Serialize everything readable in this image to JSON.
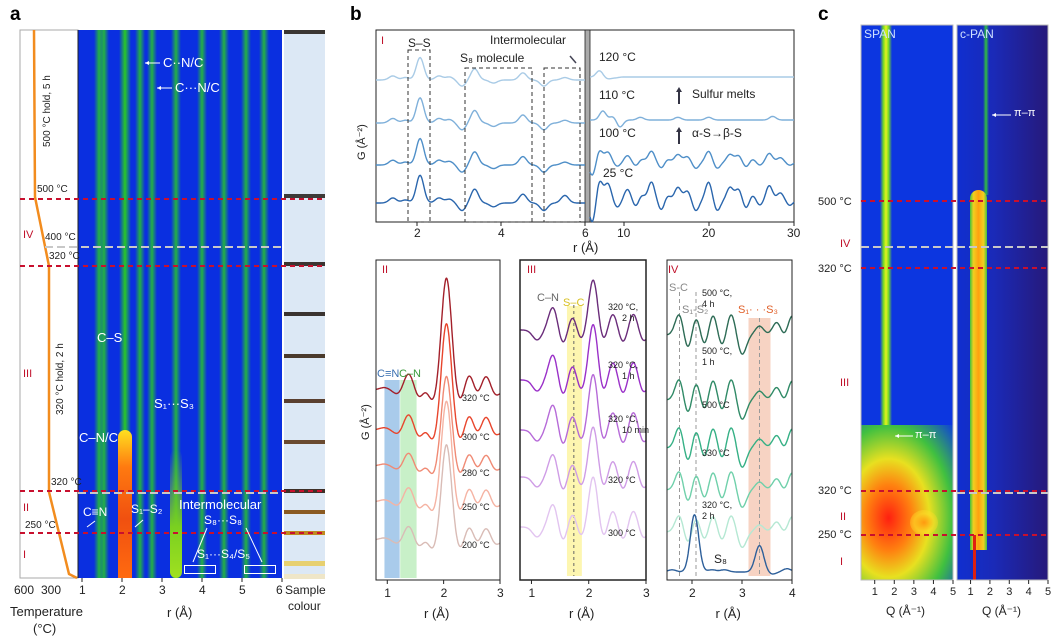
{
  "panel_labels": {
    "a": "a",
    "b": "b",
    "c": "c"
  },
  "panel_a": {
    "annotations": {
      "cn_1": "C··N/C",
      "cn_2": "C···N/C",
      "cs": "C–S",
      "cnc": "C–N/C",
      "s1s3": "S₁···S₃",
      "ctn": "C≡N",
      "s1s2": "S₁–S₂",
      "intermolecular": "Intermolecular",
      "s8s8": "S₈···S₈",
      "s1s4": "S₁···S₄/S₅"
    },
    "temperature_labels": {
      "t500": "500 °C",
      "t400": "400 °C",
      "t320a": "320 °C",
      "t320b": "320 °C",
      "t250": "250 °C"
    },
    "hold_labels": {
      "hold500": "500 °C hold, 5 h",
      "hold320": "320 °C hold, 2 h"
    },
    "stages": {
      "IV": "IV",
      "III": "III",
      "II": "II",
      "I": "I"
    },
    "temp_ticks": [
      "600",
      "300"
    ],
    "temp_axis_label_1": "Temperature",
    "temp_axis_label_2": "(°C)",
    "r_ticks": [
      "1",
      "2",
      "3",
      "4",
      "5",
      "6"
    ],
    "r_axis_label": "r (Å)",
    "sample_label_1": "Sample",
    "sample_label_2": "colour",
    "sample_colours": [
      "#3a3633",
      "#3d3a38",
      "#3b3532",
      "#3a3330",
      "#4a3a2c",
      "#5a4030",
      "#6a4a30",
      "#3e3028",
      "#8a5a22",
      "#c08a20",
      "#e7d070",
      "#efe6c8"
    ],
    "colors": {
      "temperature_curve": "#f28c1e",
      "stage_boundary": "#c8102e",
      "midline": "#c8c8c8",
      "sample_bg": "#dce8f5"
    }
  },
  "panel_b": {
    "top": {
      "stage": "I",
      "boxes": {
        "ss": "S–S",
        "s8": "S₈ molecule",
        "inter": "Intermolecular"
      },
      "temps": {
        "t120": "120 °C",
        "t110": "110 °C",
        "t100": "100 °C",
        "t25": "25 °C"
      },
      "notes": {
        "melts": "Sulfur melts",
        "transition": "α-S→β-S"
      },
      "ylabel": "G (Å⁻²)",
      "xlabel": "r (Å)",
      "x_ticks_left": [
        "2",
        "4",
        "6"
      ],
      "x_ticks_right": [
        "10",
        "20",
        "30"
      ]
    },
    "II": {
      "stage": "II",
      "band_ctn": "C≡N",
      "band_cn": "C–N",
      "ylabel": "G (Å⁻²)",
      "xlabel": "r (Å)",
      "x_ticks": [
        "1",
        "2",
        "3"
      ],
      "temps": [
        "320 °C",
        "300 °C",
        "280 °C",
        "250 °C",
        "200 °C"
      ]
    },
    "III": {
      "stage": "III",
      "cn": "C–N",
      "sc": "S–C",
      "xlabel": "r (Å)",
      "x_ticks": [
        "1",
        "2",
        "3"
      ],
      "temps": [
        [
          "320 °C,",
          "2 h"
        ],
        [
          "320 °C,",
          "1 h"
        ],
        [
          "320 °C,",
          "10 min"
        ],
        [
          "320 °C",
          ""
        ],
        [
          "300 °C",
          ""
        ]
      ]
    },
    "IV": {
      "stage": "IV",
      "sc": "S-C",
      "s1s2": "S₁-S₂",
      "s1s3": "S₁· · ·S₃",
      "s8": "S₈",
      "xlabel": "r (Å)",
      "x_ticks": [
        "2",
        "3",
        "4"
      ],
      "temps": [
        [
          "500 °C,",
          "4 h"
        ],
        [
          "500 °C,",
          "1 h"
        ],
        [
          "500 °C",
          ""
        ],
        [
          "330 °C",
          ""
        ],
        [
          "320 °C,",
          "2 h"
        ]
      ]
    }
  },
  "panel_c": {
    "span_title": "SPAN",
    "cpan_title": "c-PAN",
    "pipi": "π–π",
    "temperature_labels": {
      "t500": "500 °C",
      "t320a": "320 °C",
      "t320b": "320 °C",
      "t250": "250 °C"
    },
    "stages": {
      "IV": "IV",
      "III": "III",
      "II": "II",
      "I": "I"
    },
    "q_ticks": [
      "1",
      "2",
      "3",
      "4",
      "5"
    ],
    "xlabel": "Q (Å⁻¹)"
  },
  "chart_data": [
    {
      "type": "heatmap",
      "panel": "a",
      "xlabel": "r (Å)",
      "xlim": [
        0.9,
        6
      ],
      "bands_r": [
        1.42,
        1.55,
        2.07,
        2.45,
        2.75,
        3.35,
        4.0,
        4.55,
        5.1,
        5.55
      ],
      "strong_band_r": 2.07
    },
    {
      "type": "line",
      "panel": "b-I",
      "xlabel": "r (Å)",
      "ylabel": "G (Å⁻²)",
      "xlim_left": [
        1,
        6
      ],
      "xlim_right": [
        6,
        30
      ],
      "series": [
        {
          "name": "120 °C",
          "color": "#a9cbe6",
          "scale": 0.85,
          "right_peaks": [
            [
              7.2,
              0.35
            ],
            [
              8.2,
              -0.1
            ],
            [
              9,
              -0.05
            ]
          ]
        },
        {
          "name": "110 °C",
          "color": "#7fb0da",
          "scale": 0.95,
          "right_peaks": [
            [
              7.6,
              0.5
            ],
            [
              8.8,
              0.2
            ],
            [
              9.6,
              -0.4
            ],
            [
              12,
              0.15
            ],
            [
              16.4,
              0.15
            ],
            [
              20,
              0.15
            ],
            [
              27.5,
              0.2
            ]
          ]
        },
        {
          "name": "100 °C",
          "color": "#4f8fc8",
          "scale": 1.0,
          "right_peaks": "scaled_25C_0.6"
        },
        {
          "name": "25 °C",
          "color": "#2a66ad",
          "scale": 1.05,
          "right_peaks": "full"
        }
      ],
      "left_peaks": [
        [
          1.4,
          0.2
        ],
        [
          1.7,
          0.12
        ],
        [
          2.05,
          1.1
        ],
        [
          2.5,
          0.2
        ],
        [
          2.75,
          0.15
        ],
        [
          3.05,
          -0.3
        ],
        [
          3.35,
          0.55
        ],
        [
          3.8,
          -0.15
        ],
        [
          4.5,
          0.35
        ],
        [
          5.0,
          -0.3
        ],
        [
          5.5,
          0.3
        ]
      ],
      "right_peaks_25C": [
        [
          6.4,
          -1.3
        ],
        [
          7.2,
          1.1
        ],
        [
          8.2,
          0.9
        ],
        [
          9.3,
          -0.4
        ],
        [
          10.5,
          0.6
        ],
        [
          11.5,
          -0.4
        ],
        [
          12.1,
          0.3
        ],
        [
          13.3,
          1.0
        ],
        [
          14.5,
          -0.6
        ],
        [
          15.1,
          0.3
        ],
        [
          16.4,
          0.7
        ],
        [
          17.5,
          0.5
        ],
        [
          18.5,
          -0.6
        ],
        [
          20,
          1.0
        ],
        [
          21,
          -0.6
        ],
        [
          22.5,
          0.7
        ],
        [
          23.5,
          0.6
        ],
        [
          24.4,
          -0.5
        ],
        [
          25.1,
          0.3
        ],
        [
          26,
          -0.3
        ],
        [
          27.1,
          0.8
        ],
        [
          28.4,
          0.4
        ],
        [
          29.5,
          -0.3
        ]
      ]
    },
    {
      "type": "line",
      "panel": "b-II",
      "xlabel": "r (Å)",
      "ylabel": "G (Å⁻²)",
      "xlim": [
        0.8,
        3
      ],
      "peaks": [
        [
          0.95,
          0.1
        ],
        [
          1.2,
          -0.2
        ],
        [
          1.38,
          0.7
        ],
        [
          1.58,
          -0.5
        ],
        [
          1.68,
          0.4
        ],
        [
          1.8,
          -0.6
        ],
        [
          2.05,
          4.5
        ],
        [
          2.3,
          -0.6
        ],
        [
          2.45,
          0.8
        ],
        [
          2.6,
          -0.4
        ],
        [
          2.75,
          0.7
        ],
        [
          2.9,
          -0.3
        ]
      ],
      "series": [
        {
          "name": "320 °C",
          "color": "#a3202a",
          "scale": 1.0
        },
        {
          "name": "300 °C",
          "color": "#e8452c",
          "scale": 0.95
        },
        {
          "name": "280 °C",
          "color": "#f08a74",
          "scale": 0.8
        },
        {
          "name": "250 °C",
          "color": "#f5b3a3",
          "scale": 0.9
        },
        {
          "name": "200 °C",
          "color": "#d9bcb6",
          "scale": 0.85
        }
      ],
      "bands": [
        {
          "label": "C≡N",
          "range": [
            0.95,
            1.22
          ],
          "color": "#a9cbeb"
        },
        {
          "label": "C–N",
          "range": [
            1.23,
            1.52
          ],
          "color": "#c8f0c8"
        }
      ]
    },
    {
      "type": "line",
      "panel": "b-III",
      "xlabel": "r (Å)",
      "xlim": [
        0.8,
        3
      ],
      "peaks": [
        [
          1.1,
          -0.5
        ],
        [
          1.38,
          1.2
        ],
        [
          1.55,
          -0.8
        ],
        [
          1.72,
          0.8
        ],
        [
          1.86,
          -0.6
        ],
        [
          2.08,
          2.6
        ],
        [
          2.25,
          -0.7
        ],
        [
          2.42,
          0.9
        ],
        [
          2.6,
          -0.7
        ],
        [
          2.78,
          0.9
        ],
        [
          2.95,
          -0.6
        ]
      ],
      "series": [
        {
          "name": "320 °C, 2 h",
          "color": "#6a2c7a",
          "scale": 0.9
        },
        {
          "name": "320 °C, 1 h",
          "color": "#9a30c8",
          "scale": 1.0
        },
        {
          "name": "320 °C, 10 min",
          "color": "#b66ad8",
          "scale": 1.0
        },
        {
          "name": "320 °C",
          "color": "#cf9ce6",
          "scale": 0.9
        },
        {
          "name": "300 °C",
          "color": "#e2c4f0",
          "scale": 0.9
        }
      ],
      "bands": [
        {
          "label": "S–C",
          "range": [
            1.62,
            1.88
          ],
          "center": 1.74,
          "color": "#fdf6b0"
        }
      ]
    },
    {
      "type": "line",
      "panel": "b-IV",
      "xlabel": "r (Å)",
      "xlim": [
        1.5,
        4
      ],
      "peaks": [
        [
          1.75,
          1.0
        ],
        [
          1.92,
          -0.8
        ],
        [
          2.08,
          0.9
        ],
        [
          2.25,
          -0.6
        ],
        [
          2.42,
          1.0
        ],
        [
          2.6,
          -0.6
        ],
        [
          2.78,
          1.0
        ],
        [
          3.0,
          -0.9
        ],
        [
          3.35,
          0.4
        ],
        [
          3.7,
          0.6
        ],
        [
          3.85,
          -0.2
        ],
        [
          4.0,
          0.9
        ]
      ],
      "series": [
        {
          "name": "500 °C, 4 h",
          "color": "#2d6b55",
          "scale": 1.0
        },
        {
          "name": "500 °C, 1 h",
          "color": "#2f8a66",
          "scale": 1.0
        },
        {
          "name": "500 °C",
          "color": "#35b085",
          "scale": 1.0
        },
        {
          "name": "330 °C",
          "color": "#6fd0aa",
          "scale": 0.9
        },
        {
          "name": "320 °C, 2 h",
          "color": "#b5e8d3",
          "scale": 0.8
        },
        {
          "name": "S₈",
          "color": "#2d5f9a",
          "peaks": [
            [
              1.6,
              0.1
            ],
            [
              2.05,
              2.6
            ],
            [
              2.4,
              0.1
            ],
            [
              2.65,
              0.1
            ],
            [
              3.35,
              1.2
            ],
            [
              3.6,
              -0.1
            ],
            [
              3.9,
              0.15
            ]
          ]
        }
      ],
      "reference_lines": [
        {
          "label": "S-C",
          "r": 1.75
        },
        {
          "label": "S₁-S₂",
          "r": 2.08
        },
        {
          "label": "S₁· · ·S₃",
          "r": 3.35,
          "range": [
            3.13,
            3.57
          ],
          "color": "#f7d3c3"
        }
      ]
    },
    {
      "type": "heatmap",
      "panel": "c",
      "xlabel": "Q (Å⁻¹)",
      "xlim": [
        0.3,
        5
      ],
      "maps": [
        {
          "name": "SPAN",
          "pi_pi_Q": 1.6
        },
        {
          "name": "c-PAN",
          "pi_pi_Q": 1.8
        }
      ]
    }
  ]
}
